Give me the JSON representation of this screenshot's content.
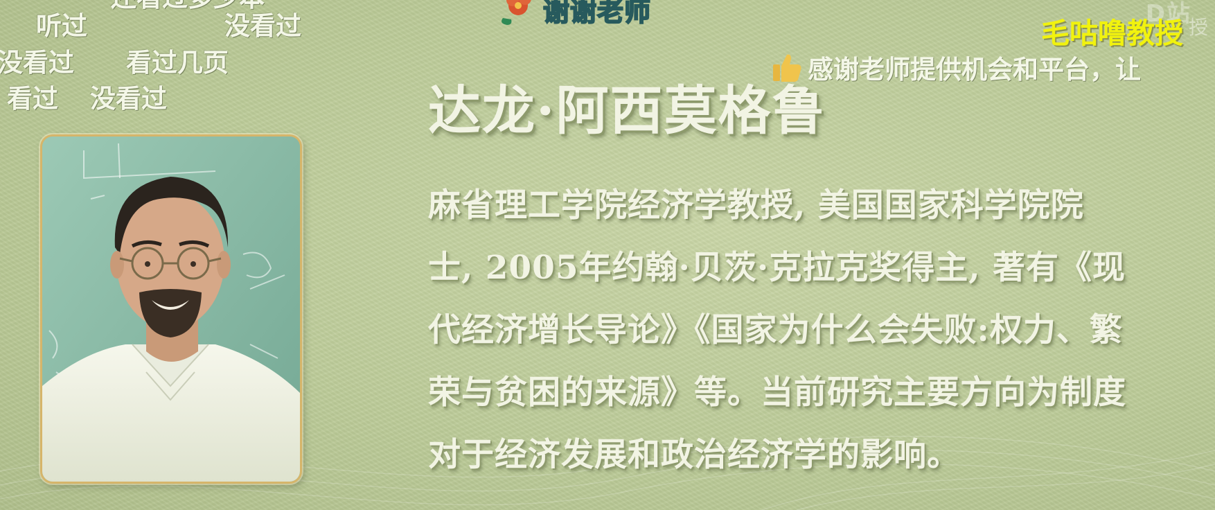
{
  "danmaku": {
    "clipped_top": "还看过多少本",
    "items": [
      {
        "text": "听过"
      },
      {
        "text": "没看过"
      },
      {
        "text": "没看过"
      },
      {
        "text": "看过几页"
      },
      {
        "text": "看过"
      },
      {
        "text": "没看过"
      }
    ],
    "like_comment": "感谢老师提供机会和平台，让"
  },
  "banner": {
    "text": "谢谢老师"
  },
  "watermark": {
    "logo": "D站",
    "sub": "授"
  },
  "uploader": {
    "name": "毛咕噜教授"
  },
  "profile": {
    "name": "达龙·阿西莫格鲁",
    "bio_lines": [
      "麻省理工学院经济学教授, 美国国家科学院院",
      "士, 2005年约翰·贝茨·克拉克奖得主, 著有《现",
      "代经济增长导论》《国家为什么会失败:权力、繁",
      "荣与贫困的来源》等。当前研究主要方向为制度",
      "对于经济发展和政治经济学的影响。"
    ]
  },
  "colors": {
    "background": "#bccb98",
    "title_text": "#f2f4e4",
    "uploader_text": "#f1f20e",
    "frame_border": "#d6b56a",
    "banner_stroke": "#275a5d"
  },
  "icons": [
    "flower-icon",
    "thumbs-up-icon"
  ]
}
